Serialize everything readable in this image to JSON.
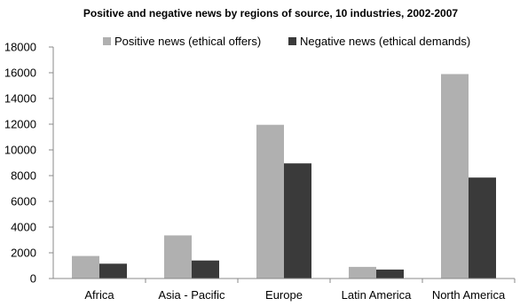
{
  "chart_data": {
    "type": "bar",
    "title": "Positive and negative news by regions of source, 10 industries, 2002-2007",
    "xlabel": "",
    "ylabel": "",
    "ylim": [
      0,
      18000
    ],
    "yticks": [
      0,
      2000,
      4000,
      6000,
      8000,
      10000,
      12000,
      14000,
      16000,
      18000
    ],
    "grid": false,
    "legend": "top",
    "categories": [
      "Africa",
      "Asia - Pacific",
      "Europe",
      "Latin America",
      "North America"
    ],
    "series": [
      {
        "name": "Positive news (ethical offers)",
        "color": "#b0b0b0",
        "values": [
          1750,
          3350,
          11950,
          900,
          15900
        ]
      },
      {
        "name": "Negative news (ethical demands)",
        "color": "#3a3a3a",
        "values": [
          1150,
          1400,
          8950,
          700,
          7850
        ]
      }
    ]
  }
}
